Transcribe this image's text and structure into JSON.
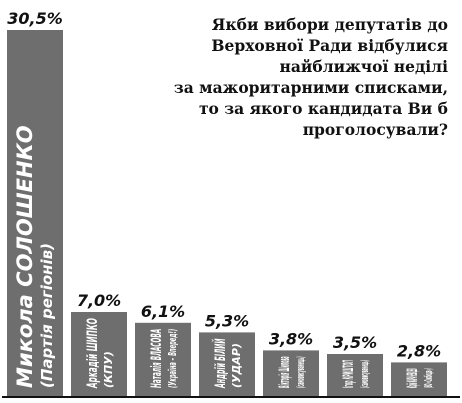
{
  "question": {
    "lines": [
      "Якби вибори депутатів до",
      "Верховної Ради відбулися",
      "найближчої неділі",
      "за мажоритарними списками,",
      "то за якого кандидата Ви б",
      "проголосували?"
    ]
  },
  "colors": {
    "bar": "#6e6e6e",
    "bar_text": "#ffffff",
    "value_text": "#111111",
    "axis": "#111111"
  },
  "chart_data": {
    "type": "bar",
    "title": "Якби вибори депутатів до Верховної Ради відбулися найближчої неділі за мажоритарними списками, то за якого кандидата Ви б проголосували?",
    "xlabel": "",
    "ylabel": "",
    "unit": "%",
    "ylim": [
      0,
      30.5
    ],
    "grid": false,
    "legend": "none",
    "categories": [
      "Микола СОЛОШЕНКО",
      "Аркадій ШИПКО",
      "Наталія ВЛАСОВА",
      "Андрій БІЛИЙ",
      "Вікторія Шилова",
      "Ігор КРИШТОП",
      "Юрій КАРАЧЕВЦЕВ"
    ],
    "parties": [
      "(Партія регіонів)",
      "(КПУ)",
      "(Україна – Вперед!)",
      "(УДАР)",
      "(самовисуванець)",
      "(самовисуванець)",
      "(ВО «Свобода»)"
    ],
    "values": [
      30.5,
      7.0,
      6.1,
      5.3,
      3.8,
      3.5,
      2.8
    ],
    "value_labels": [
      "30,5%",
      "7,0%",
      "6,1%",
      "5,3%",
      "3,8%",
      "3,5%",
      "2,8%"
    ]
  }
}
